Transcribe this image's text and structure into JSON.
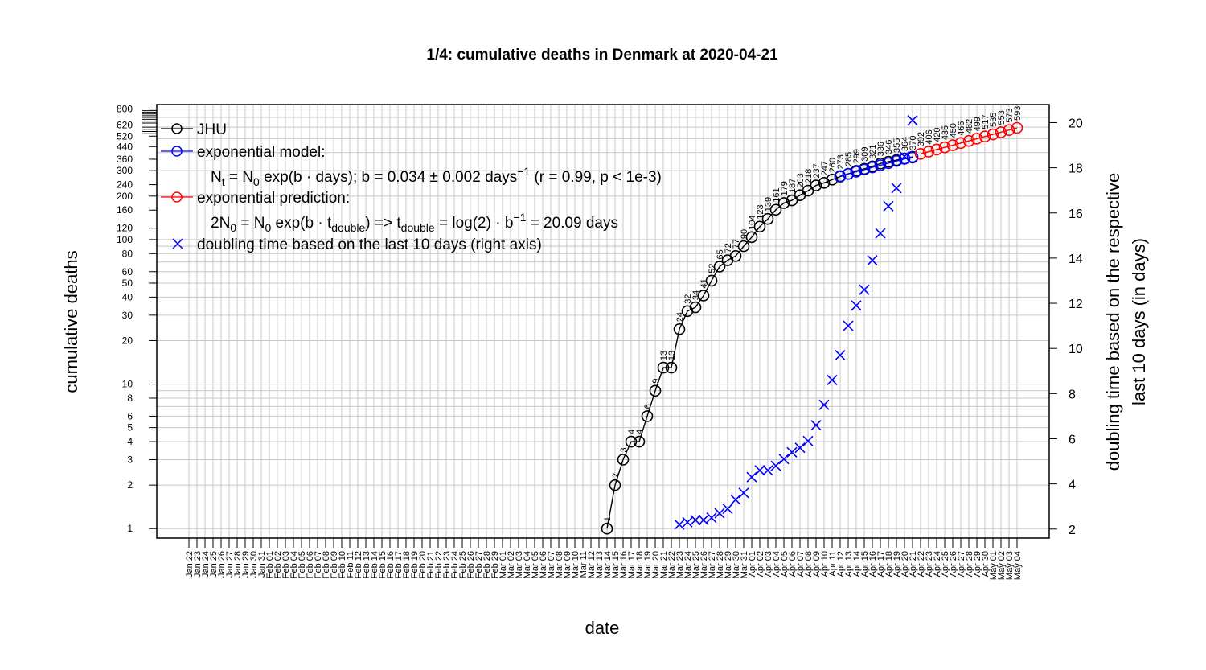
{
  "chart_data": {
    "type": "line",
    "title": "1/4: cumulative deaths in Denmark at 2020-04-21",
    "xlabel": "date",
    "ylabel_left": "cumulative deaths",
    "ylabel_right_line1": "doubling time based on the respective",
    "ylabel_right_line2": "last 10 days (in days)",
    "y_left_scale": "log",
    "y_left_range": [
      0.86,
      860
    ],
    "y_left_ticks": [
      1,
      2,
      3,
      4,
      5,
      6,
      8,
      10,
      20,
      30,
      40,
      50,
      60,
      80,
      100,
      120,
      160,
      200,
      240,
      300,
      360,
      440,
      520,
      620,
      800
    ],
    "y_right_range": [
      1.6,
      20.8
    ],
    "y_right_ticks": [
      2,
      4,
      6,
      8,
      10,
      12,
      14,
      16,
      18,
      20
    ],
    "x_dates": [
      "Jan 22",
      "Jan 23",
      "Jan 24",
      "Jan 25",
      "Jan 26",
      "Jan 27",
      "Jan 28",
      "Jan 29",
      "Jan 30",
      "Jan 31",
      "Feb 01",
      "Feb 02",
      "Feb 03",
      "Feb 04",
      "Feb 05",
      "Feb 06",
      "Feb 07",
      "Feb 08",
      "Feb 09",
      "Feb 10",
      "Feb 11",
      "Feb 12",
      "Feb 13",
      "Feb 14",
      "Feb 15",
      "Feb 16",
      "Feb 17",
      "Feb 18",
      "Feb 19",
      "Feb 20",
      "Feb 21",
      "Feb 22",
      "Feb 23",
      "Feb 24",
      "Feb 25",
      "Feb 26",
      "Feb 27",
      "Feb 28",
      "Feb 29",
      "Mar 01",
      "Mar 02",
      "Mar 03",
      "Mar 04",
      "Mar 05",
      "Mar 06",
      "Mar 07",
      "Mar 08",
      "Mar 09",
      "Mar 10",
      "Mar 11",
      "Mar 12",
      "Mar 13",
      "Mar 14",
      "Mar 15",
      "Mar 16",
      "Mar 17",
      "Mar 18",
      "Mar 19",
      "Mar 20",
      "Mar 21",
      "Mar 22",
      "Mar 23",
      "Mar 24",
      "Mar 25",
      "Mar 26",
      "Mar 27",
      "Mar 28",
      "Mar 29",
      "Mar 30",
      "Mar 31",
      "Apr 01",
      "Apr 02",
      "Apr 03",
      "Apr 04",
      "Apr 05",
      "Apr 06",
      "Apr 07",
      "Apr 08",
      "Apr 09",
      "Apr 10",
      "Apr 11",
      "Apr 12",
      "Apr 13",
      "Apr 14",
      "Apr 15",
      "Apr 16",
      "Apr 17",
      "Apr 18",
      "Apr 19",
      "Apr 20",
      "Apr 21",
      "Apr 22",
      "Apr 23",
      "Apr 24",
      "Apr 25",
      "Apr 26",
      "Apr 27",
      "Apr 28",
      "Apr 29",
      "Apr 30",
      "May 01",
      "May 02",
      "May 03",
      "May 04"
    ],
    "series": [
      {
        "name": "JHU",
        "color": "#000000",
        "marker": "circle",
        "x": [
          "Mar 14",
          "Mar 15",
          "Mar 16",
          "Mar 17",
          "Mar 18",
          "Mar 19",
          "Mar 20",
          "Mar 21",
          "Mar 22",
          "Mar 23",
          "Mar 24",
          "Mar 25",
          "Mar 26",
          "Mar 27",
          "Mar 28",
          "Mar 29",
          "Mar 30",
          "Mar 31",
          "Apr 01",
          "Apr 02",
          "Apr 03",
          "Apr 04",
          "Apr 05",
          "Apr 06",
          "Apr 07",
          "Apr 08",
          "Apr 09",
          "Apr 10",
          "Apr 11",
          "Apr 12",
          "Apr 13",
          "Apr 14",
          "Apr 15",
          "Apr 16",
          "Apr 17",
          "Apr 18",
          "Apr 19",
          "Apr 20",
          "Apr 21"
        ],
        "y": [
          1,
          2,
          3,
          4,
          4,
          6,
          9,
          13,
          13,
          24,
          32,
          34,
          41,
          52,
          65,
          72,
          77,
          90,
          104,
          123,
          139,
          161,
          179,
          187,
          203,
          218,
          237,
          247,
          260,
          273,
          285,
          299,
          309,
          321,
          336,
          346,
          355,
          364,
          370
        ]
      },
      {
        "name": "exponential model:",
        "color": "#0000ff",
        "marker": "circle",
        "x": [
          "Apr 12",
          "Apr 13",
          "Apr 14",
          "Apr 15",
          "Apr 16",
          "Apr 17",
          "Apr 18",
          "Apr 19",
          "Apr 20",
          "Apr 21"
        ],
        "y": [
          275,
          285,
          295,
          305,
          316,
          327,
          338,
          350,
          362,
          374
        ]
      },
      {
        "name": "exponential prediction:",
        "color": "#ff0000",
        "marker": "circle",
        "x": [
          "Apr 22",
          "Apr 23",
          "Apr 24",
          "Apr 25",
          "Apr 26",
          "Apr 27",
          "Apr 28",
          "Apr 29",
          "Apr 30",
          "May 01",
          "May 02",
          "May 03",
          "May 04"
        ],
        "y": [
          392,
          406,
          420,
          435,
          450,
          466,
          482,
          499,
          517,
          535,
          553,
          573,
          593
        ]
      },
      {
        "name": "doubling time based on the last  10  days (right axis)",
        "color": "#0000ff",
        "marker": "cross",
        "axis": "right",
        "x": [
          "Mar 23",
          "Mar 24",
          "Mar 25",
          "Mar 26",
          "Mar 27",
          "Mar 28",
          "Mar 29",
          "Mar 30",
          "Mar 31",
          "Apr 01",
          "Apr 02",
          "Apr 03",
          "Apr 04",
          "Apr 05",
          "Apr 06",
          "Apr 07",
          "Apr 08",
          "Apr 09",
          "Apr 10",
          "Apr 11",
          "Apr 12",
          "Apr 13",
          "Apr 14",
          "Apr 15",
          "Apr 16",
          "Apr 17",
          "Apr 18",
          "Apr 19",
          "Apr 20",
          "Apr 21"
        ],
        "y": [
          2.2,
          2.3,
          2.4,
          2.4,
          2.5,
          2.7,
          2.9,
          3.3,
          3.6,
          4.3,
          4.6,
          4.6,
          4.8,
          5.1,
          5.4,
          5.6,
          5.9,
          6.6,
          7.5,
          8.6,
          9.7,
          11.0,
          11.9,
          12.6,
          13.9,
          15.1,
          16.3,
          17.1,
          18.5,
          20.1
        ]
      }
    ],
    "legend": {
      "placement": "top-left",
      "jhu": "JHU",
      "model": "exponential model:",
      "model_formula": {
        "a": "N",
        "a_sub": "t",
        "b": " = N",
        "b_sub": "0",
        "c": " exp(b · days); b = 0.034 ± 0.002 days",
        "c_sup": "−1",
        "d": " (r = 0.99, p < 1e-3)"
      },
      "prediction": "exponential prediction:",
      "prediction_formula": {
        "a": "2N",
        "a_sub": "0",
        "b": " = N",
        "b_sub": "0",
        "c": " exp(b · t",
        "c_sub": "double",
        "d": ") => t",
        "d_sub": "double",
        "e": " = log(2) · b",
        "e_sup": "−1",
        "f": " = 20.09 days"
      },
      "doubling": "doubling time based on the last  10  days (right axis)"
    },
    "grid": true
  }
}
